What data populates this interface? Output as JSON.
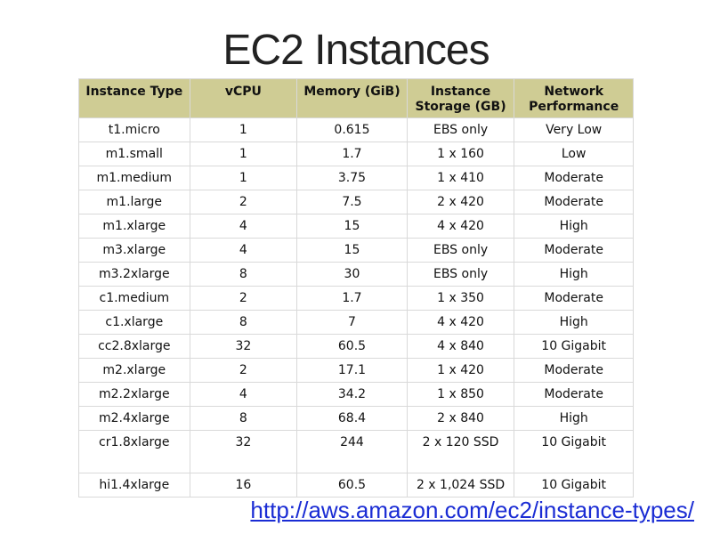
{
  "title": "EC2 Instances",
  "table": {
    "headers": {
      "type": "Instance Type",
      "vcpu": "vCPU",
      "memory": "Memory (GiB)",
      "storage": "Instance Storage (GB)",
      "network": "Network Performance"
    },
    "rows": [
      {
        "type": "t1.micro",
        "vcpu": "1",
        "memory": "0.615",
        "storage": "EBS only",
        "network": "Very Low"
      },
      {
        "type": "m1.small",
        "vcpu": "1",
        "memory": "1.7",
        "storage": "1 x 160",
        "network": "Low"
      },
      {
        "type": "m1.medium",
        "vcpu": "1",
        "memory": "3.75",
        "storage": "1 x 410",
        "network": "Moderate"
      },
      {
        "type": "m1.large",
        "vcpu": "2",
        "memory": "7.5",
        "storage": "2 x 420",
        "network": "Moderate"
      },
      {
        "type": "m1.xlarge",
        "vcpu": "4",
        "memory": "15",
        "storage": "4 x 420",
        "network": "High"
      },
      {
        "type": "m3.xlarge",
        "vcpu": "4",
        "memory": "15",
        "storage": "EBS only",
        "network": "Moderate"
      },
      {
        "type": "m3.2xlarge",
        "vcpu": "8",
        "memory": "30",
        "storage": "EBS only",
        "network": "High"
      },
      {
        "type": "c1.medium",
        "vcpu": "2",
        "memory": "1.7",
        "storage": "1 x 350",
        "network": "Moderate"
      },
      {
        "type": "c1.xlarge",
        "vcpu": "8",
        "memory": "7",
        "storage": "4 x 420",
        "network": "High"
      },
      {
        "type": "cc2.8xlarge",
        "vcpu": "32",
        "memory": "60.5",
        "storage": "4 x 840",
        "network": "10 Gigabit"
      },
      {
        "type": "m2.xlarge",
        "vcpu": "2",
        "memory": "17.1",
        "storage": "1 x 420",
        "network": "Moderate"
      },
      {
        "type": "m2.2xlarge",
        "vcpu": "4",
        "memory": "34.2",
        "storage": "1 x 850",
        "network": "Moderate"
      },
      {
        "type": "m2.4xlarge",
        "vcpu": "8",
        "memory": "68.4",
        "storage": "2 x 840",
        "network": "High"
      },
      {
        "type": "cr1.8xlarge",
        "vcpu": "32",
        "memory": "244",
        "storage": "2 x 120 SSD",
        "network": "10 Gigabit"
      },
      {
        "type": "hi1.4xlarge",
        "vcpu": "16",
        "memory": "60.5",
        "storage": "2 x 1,024 SSD",
        "network": "10 Gigabit"
      }
    ]
  },
  "link": {
    "text": "http://aws.amazon.com/ec2/instance-types/"
  },
  "colors": {
    "header_bg": "#cfcc94",
    "link": "#1a2cd4"
  }
}
